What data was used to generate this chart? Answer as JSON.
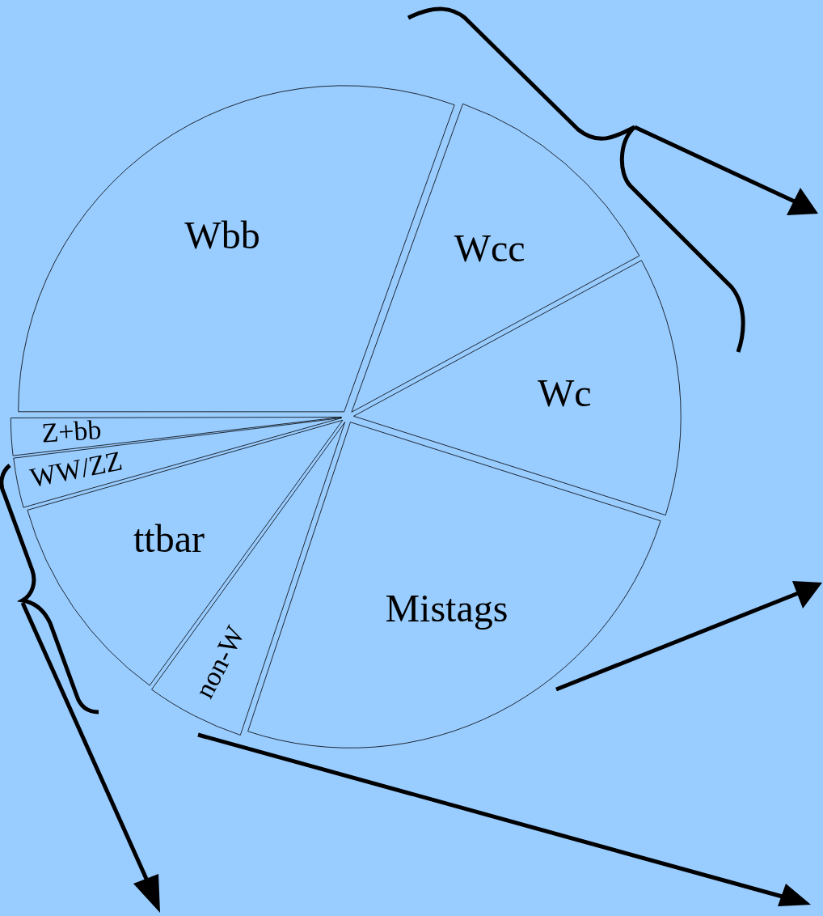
{
  "chart_data": {
    "type": "pie",
    "legend": false,
    "categories": [
      "Wbb",
      "Wcc",
      "Wc",
      "Mistags",
      "non-W",
      "ttbar",
      "WW/ZZ",
      "Z+bb"
    ],
    "values": [
      30.5,
      11.6,
      12.8,
      25.2,
      4.9,
      10.6,
      2.5,
      1.9
    ],
    "colors": [
      "#99ccff",
      "#99ccff",
      "#99ccff",
      "#99ccff",
      "#99ccff",
      "#99ccff",
      "#99ccff",
      "#99ccff"
    ]
  }
}
